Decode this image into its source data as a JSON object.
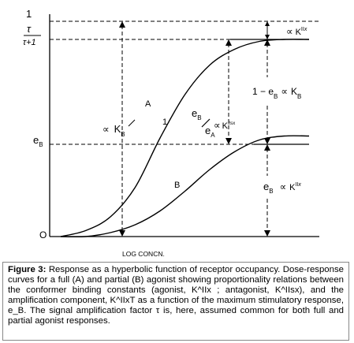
{
  "chart_data": {
    "type": "line",
    "xlabel": "LOG CONCN.",
    "y_ticks": {
      "top_numerator": "1",
      "top_fraction_num": "τ",
      "top_fraction_den": "τ+1",
      "eb_base": "e",
      "eb_sub": "B",
      "origin": "O"
    },
    "series": [
      {
        "name": "A",
        "x": [
          0,
          1,
          2,
          3,
          4,
          5,
          6,
          7,
          8,
          9,
          10
        ],
        "y": [
          0.0,
          0.03,
          0.1,
          0.25,
          0.5,
          0.72,
          0.87,
          0.95,
          0.99,
          1.0,
          1.0
        ]
      },
      {
        "name": "B",
        "x": [
          0,
          1,
          2,
          3,
          4,
          5,
          6,
          7,
          8,
          9,
          10
        ],
        "y": [
          0.0,
          0.0,
          0.02,
          0.06,
          0.13,
          0.23,
          0.34,
          0.43,
          0.49,
          0.51,
          0.51
        ]
      }
    ],
    "levels": {
      "top": 1.1,
      "tau": 1.0,
      "eb": 0.51
    },
    "annotations": {
      "curve_a": "A",
      "curve_b": "B",
      "one": "1",
      "prop_kb": {
        "sym": "∝",
        "base": "K",
        "sub": "B"
      },
      "prop_top": {
        "sym": "∝",
        "base": "K",
        "sup": "II",
        "sup2": "x"
      },
      "prop_amp": {
        "pre": "1 − e",
        "sub": "B",
        "sym": "∝",
        "base": "K",
        "sub2": "B"
      },
      "prop_mid": {
        "sym": "∝",
        "base": "K",
        "sup": "IIsx"
      },
      "eb_over_ea": {
        "num": "e",
        "num_sub": "B",
        "slash": "/",
        "den": "e",
        "den_sub": "A"
      },
      "prop_bottom": {
        "base": "e",
        "sub": "B",
        "sym": "∝",
        "base2": "K",
        "sup": "II",
        "sup2": "x"
      }
    }
  },
  "caption": {
    "label": "Figure 3:",
    "text": "Response as a hyperbolic function of receptor occupancy. Dose-response curves for a full (A) and partial (B) agonist showing proportionality relations between the conformer binding constants (agonist, K^IIx ; antagonist, K^IIsx), and the amplification component, K^IIxT as a function of the maximum stimulatory response, e_B. The signal amplification factor τ is, here, assumed common for both full and partial agonist responses."
  }
}
